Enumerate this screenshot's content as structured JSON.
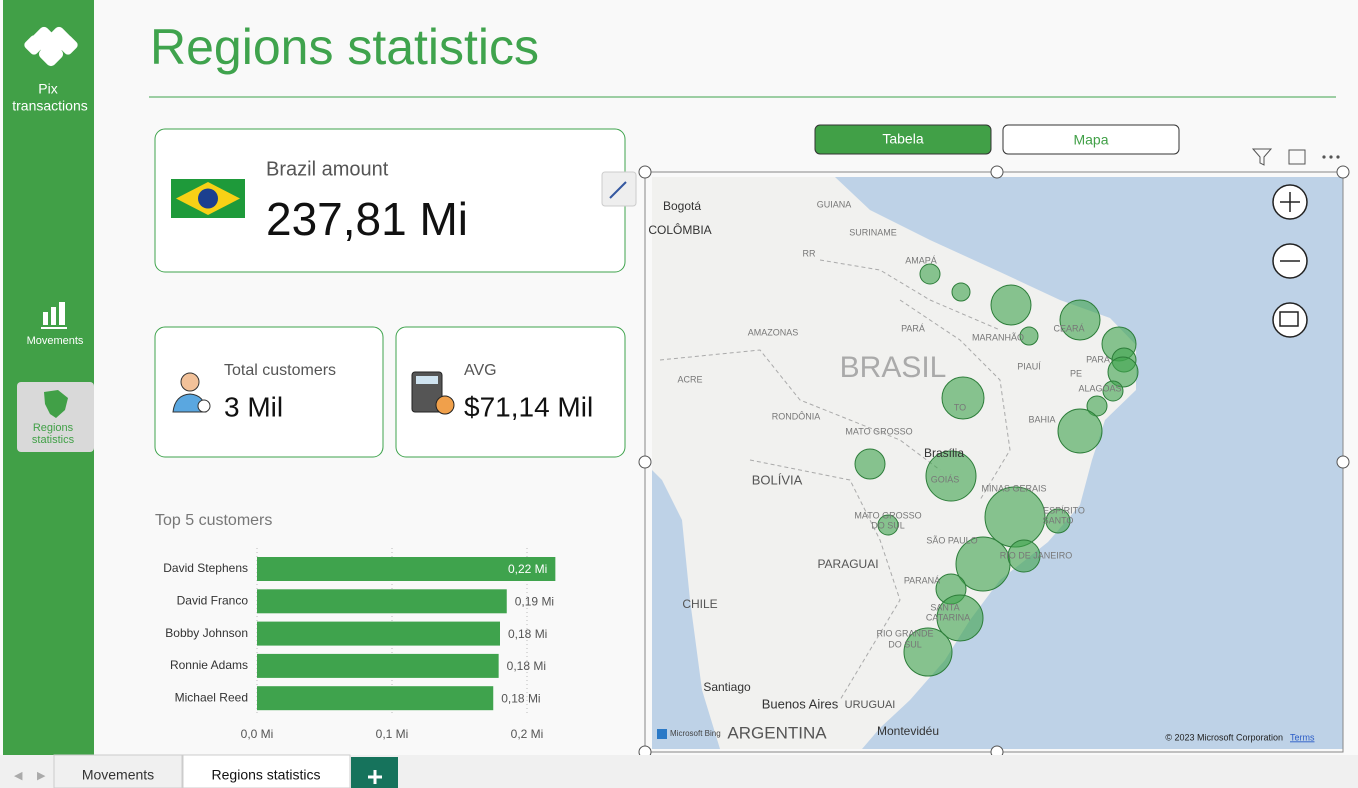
{
  "sidebar": {
    "app_name_lines": [
      "Pix",
      "transactions"
    ],
    "items": [
      "Movements",
      [
        "Regions",
        "statistics"
      ]
    ]
  },
  "header": {
    "title": "Regions statistics"
  },
  "cards": {
    "brazil": {
      "label": "Brazil amount",
      "value": "237,81 Mi"
    },
    "customers": {
      "label": "Total customers",
      "value": "3 Mil"
    },
    "avg": {
      "label": "AVG",
      "value": "$71,14 Mil"
    }
  },
  "view_toggle": {
    "active": "Tabela",
    "inactive": "Mapa"
  },
  "map": {
    "labels": [
      "Bogotá",
      "COLÔMBIA",
      "GUIANA",
      "SURINAME",
      "RR",
      "AMAPÁ",
      "PARÁ",
      "AMAZONAS",
      "MARANHÃO",
      "CEARÁ",
      "PIAUÍ",
      "PE",
      "PARA",
      "ALAGOAS",
      "ACRE",
      "BRASIL",
      "TO",
      "RONDÔNIA",
      "BAHIA",
      "MATO GROSSO",
      "Brasília",
      "GOIÁS",
      "BOLÍVIA",
      "MINAS GERAIS",
      "ESPÍRITO",
      "SANTO",
      "MATO GROSSO",
      "DO SUL",
      "SÃO PAULO",
      "RIO DE JANEIRO",
      "PARAGUAI",
      "PARANÁ",
      "CHILE",
      "SANTA",
      "CATARINA",
      "RIO GRANDE",
      "DO SUL",
      "Santiago",
      "Buenos Aires",
      "URUGUAI",
      "ARGENTINA",
      "Montevidéu"
    ],
    "provider": "Microsoft Bing",
    "attribution": "© 2023 Microsoft Corporation",
    "terms": "Terms"
  },
  "chart_data": {
    "type": "hbar",
    "title": "Top 5 customers",
    "categories": [
      "David Stephens",
      "David Franco",
      "Bobby Johnson",
      "Ronnie Adams",
      "Michael Reed"
    ],
    "values": [
      0.221,
      0.185,
      0.18,
      0.179,
      0.175
    ],
    "value_labels": [
      "0,22 Mi",
      "0,19 Mi",
      "0,18 Mi",
      "0,18 Mi",
      "0,18 Mi"
    ],
    "color": "#3fa34d",
    "xlim": [
      0,
      0.22
    ],
    "xticks": [
      {
        "value": 0,
        "label": "0,0 Mi"
      },
      {
        "value": 0.1,
        "label": "0,1 Mi"
      },
      {
        "value": 0.2,
        "label": "0,2 Mi"
      }
    ],
    "grid": true
  },
  "tabs": [
    "Movements",
    "Regions statistics"
  ]
}
